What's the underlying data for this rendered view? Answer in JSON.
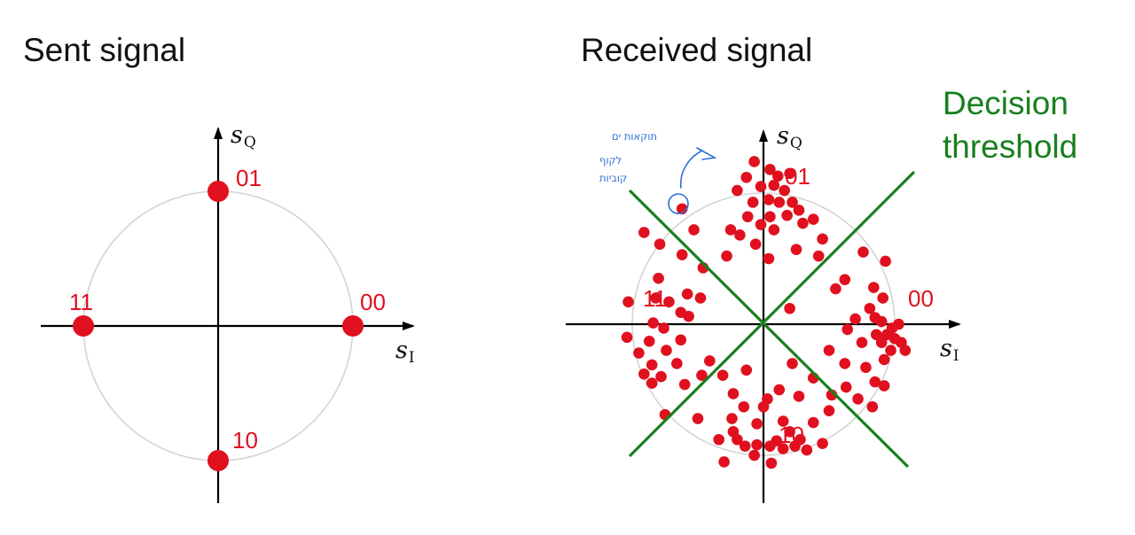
{
  "colors": {
    "symbol": "#e0101f",
    "threshold": "#18801e",
    "annotation": "#2f6fd6",
    "axis": "#000000",
    "circle": "#d4d4d4"
  },
  "left_diagram": {
    "title": "Sent signal",
    "axis_x_label": "s",
    "axis_x_sub": "I",
    "axis_y_label": "s",
    "axis_y_sub": "Q",
    "symbols": [
      {
        "label": "01",
        "i": 0,
        "q": 1
      },
      {
        "label": "00",
        "i": 1,
        "q": 0
      },
      {
        "label": "10",
        "i": 0,
        "q": -1
      },
      {
        "label": "11",
        "i": -1,
        "q": 0
      }
    ]
  },
  "right_diagram": {
    "title": "Received signal",
    "threshold_label_line1": "Decision",
    "threshold_label_line2": "threshold",
    "axis_x_label": "s",
    "axis_x_sub": "I",
    "axis_y_label": "s",
    "axis_y_sub": "Q",
    "symbol_labels": [
      "01",
      "00",
      "10",
      "11"
    ],
    "handwritten_note": {
      "line1": "תוקאות ים",
      "line2": "לקוף",
      "line3": "קוביות"
    },
    "received_points": [
      [
        -0.07,
        1.24
      ],
      [
        0.05,
        1.18
      ],
      [
        -0.13,
        1.12
      ],
      [
        0.11,
        1.13
      ],
      [
        0.2,
        1.15
      ],
      [
        -0.02,
        1.05
      ],
      [
        0.08,
        1.06
      ],
      [
        0.16,
        1.02
      ],
      [
        -0.2,
        1.02
      ],
      [
        0.04,
        0.95
      ],
      [
        0.12,
        0.93
      ],
      [
        0.22,
        0.93
      ],
      [
        -0.08,
        0.93
      ],
      [
        0.27,
        0.87
      ],
      [
        0.18,
        0.83
      ],
      [
        -0.12,
        0.82
      ],
      [
        0.05,
        0.82
      ],
      [
        0.3,
        0.77
      ],
      [
        -0.02,
        0.76
      ],
      [
        0.38,
        0.8
      ],
      [
        -0.25,
        0.72
      ],
      [
        0.08,
        0.72
      ],
      [
        -0.18,
        0.68
      ],
      [
        0.45,
        0.65
      ],
      [
        -0.06,
        0.61
      ],
      [
        0.25,
        0.57
      ],
      [
        -0.28,
        0.52
      ],
      [
        0.42,
        0.52
      ],
      [
        0.04,
        0.5
      ],
      [
        -0.62,
        0.53
      ],
      [
        -0.46,
        0.43
      ],
      [
        -0.91,
        0.7
      ],
      [
        -0.79,
        0.61
      ],
      [
        -0.58,
        0.23
      ],
      [
        -0.8,
        0.35
      ],
      [
        -1.03,
        0.17
      ],
      [
        -0.82,
        0.2
      ],
      [
        -0.57,
        0.06
      ],
      [
        -0.48,
        0.2
      ],
      [
        -0.72,
        0.17
      ],
      [
        -0.63,
        0.09
      ],
      [
        -0.84,
        0.01
      ],
      [
        -0.76,
        -0.03
      ],
      [
        -1.04,
        -0.1
      ],
      [
        -0.87,
        -0.13
      ],
      [
        -0.63,
        -0.12
      ],
      [
        -0.95,
        -0.22
      ],
      [
        -0.74,
        -0.2
      ],
      [
        -0.85,
        -0.31
      ],
      [
        -0.66,
        -0.3
      ],
      [
        -0.91,
        -0.38
      ],
      [
        -0.78,
        -0.4
      ],
      [
        -0.85,
        -0.45
      ],
      [
        -0.6,
        -0.46
      ],
      [
        -0.47,
        -0.39
      ],
      [
        -0.75,
        -0.69
      ],
      [
        -0.31,
        -0.39
      ],
      [
        -0.41,
        -0.28
      ],
      [
        0.76,
        0.55
      ],
      [
        0.93,
        0.48
      ],
      [
        0.62,
        0.34
      ],
      [
        0.84,
        0.28
      ],
      [
        0.91,
        0.2
      ],
      [
        0.81,
        0.12
      ],
      [
        0.7,
        0.04
      ],
      [
        0.85,
        0.05
      ],
      [
        0.9,
        0.02
      ],
      [
        0.64,
        -0.04
      ],
      [
        0.98,
        -0.03
      ],
      [
        1.03,
        0
      ],
      [
        0.94,
        -0.08
      ],
      [
        0.86,
        -0.08
      ],
      [
        1.0,
        -0.11
      ],
      [
        0.75,
        -0.14
      ],
      [
        0.9,
        -0.14
      ],
      [
        1.05,
        -0.14
      ],
      [
        0.97,
        -0.2
      ],
      [
        1.08,
        -0.2
      ],
      [
        0.92,
        -0.27
      ],
      [
        0.62,
        -0.3
      ],
      [
        0.78,
        -0.33
      ],
      [
        0.5,
        -0.2
      ],
      [
        0.38,
        -0.41
      ],
      [
        0.52,
        -0.54
      ],
      [
        0.63,
        -0.48
      ],
      [
        0.72,
        -0.57
      ],
      [
        0.5,
        -0.66
      ],
      [
        0.92,
        -0.47
      ],
      [
        0.83,
        -0.63
      ],
      [
        0.85,
        -0.44
      ],
      [
        0.22,
        -0.3
      ],
      [
        0.27,
        -0.55
      ],
      [
        -0.23,
        -0.53
      ],
      [
        -0.15,
        -0.63
      ],
      [
        0.03,
        -0.57
      ],
      [
        0.15,
        -0.74
      ],
      [
        0.2,
        -0.82
      ],
      [
        0.28,
        -0.88
      ],
      [
        0.45,
        -0.91
      ],
      [
        0.38,
        -0.75
      ],
      [
        0.1,
        -0.89
      ],
      [
        -0.05,
        -0.76
      ],
      [
        -0.24,
        -0.72
      ],
      [
        -0.23,
        -0.82
      ],
      [
        -0.2,
        -0.88
      ],
      [
        -0.14,
        -0.93
      ],
      [
        -0.05,
        -0.92
      ],
      [
        0.05,
        -0.93
      ],
      [
        0.15,
        -0.95
      ],
      [
        0.24,
        -0.93
      ],
      [
        0.33,
        -0.96
      ],
      [
        -0.34,
        -0.88
      ],
      [
        -0.07,
        -1.0
      ],
      [
        0.06,
        -1.06
      ],
      [
        -0.3,
        -1.05
      ],
      [
        0.12,
        -0.5
      ],
      [
        0.0,
        -0.63
      ],
      [
        -0.5,
        -0.72
      ],
      [
        -0.13,
        -0.35
      ],
      [
        0.2,
        0.12
      ],
      [
        -0.53,
        0.72
      ],
      [
        0.55,
        0.27
      ]
    ],
    "outlier_point": [
      -0.62,
      0.88
    ]
  }
}
